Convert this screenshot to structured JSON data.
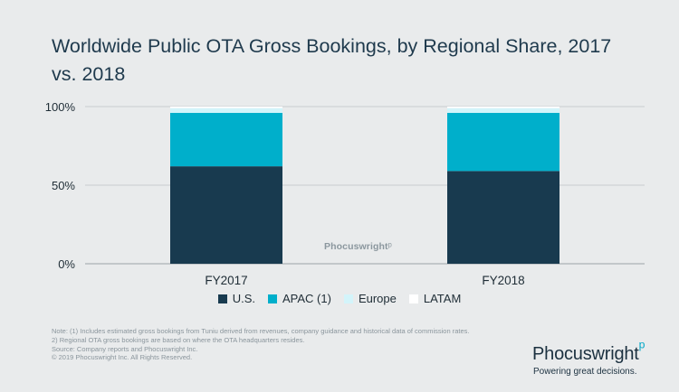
{
  "title": "Worldwide Public OTA Gross Bookings, by Regional Share, 2017 vs. 2018",
  "chart_data": {
    "type": "bar",
    "stacked": true,
    "title": "Worldwide Public OTA Gross Bookings, by Regional Share, 2017 vs. 2018",
    "categories": [
      "FY2017",
      "FY2018"
    ],
    "series": [
      {
        "name": "U.S.",
        "values": [
          62,
          59
        ],
        "color": "#183a4f"
      },
      {
        "name": "APAC (1)",
        "values": [
          34,
          37
        ],
        "color": "#00afcb"
      },
      {
        "name": "Europe",
        "values": [
          3,
          3
        ],
        "color": "#d3f4fa"
      },
      {
        "name": "LATAM",
        "values": [
          1,
          1
        ],
        "color": "#ffffff"
      }
    ],
    "yticks": [
      0,
      50,
      100
    ],
    "ytick_labels": [
      "0%",
      "50%",
      "100%"
    ],
    "ylim": [
      0,
      100
    ],
    "xlabel": "",
    "ylabel": "",
    "legend_position": "bottom",
    "grid": true
  },
  "legend": [
    {
      "label": "U.S.",
      "color": "#183a4f"
    },
    {
      "label": "APAC (1)",
      "color": "#00afcb"
    },
    {
      "label": "Europe",
      "color": "#d3f4fa"
    },
    {
      "label": "LATAM",
      "color": "#ffffff"
    }
  ],
  "notes": [
    "Note: (1) Includes estimated gross bookings from Tuniu derived from revenues, company guidance and historical data of commission rates.",
    "2) Regional OTA gross bookings are based on where the OTA headquarters resides.",
    "Source: Company reports and Phocuswright Inc.",
    "© 2019  Phocuswright Inc. All Rights Reserved."
  ],
  "watermark": "Phocuswright",
  "brand": {
    "name": "Phocuswright",
    "tagline": "Powering great decisions."
  }
}
